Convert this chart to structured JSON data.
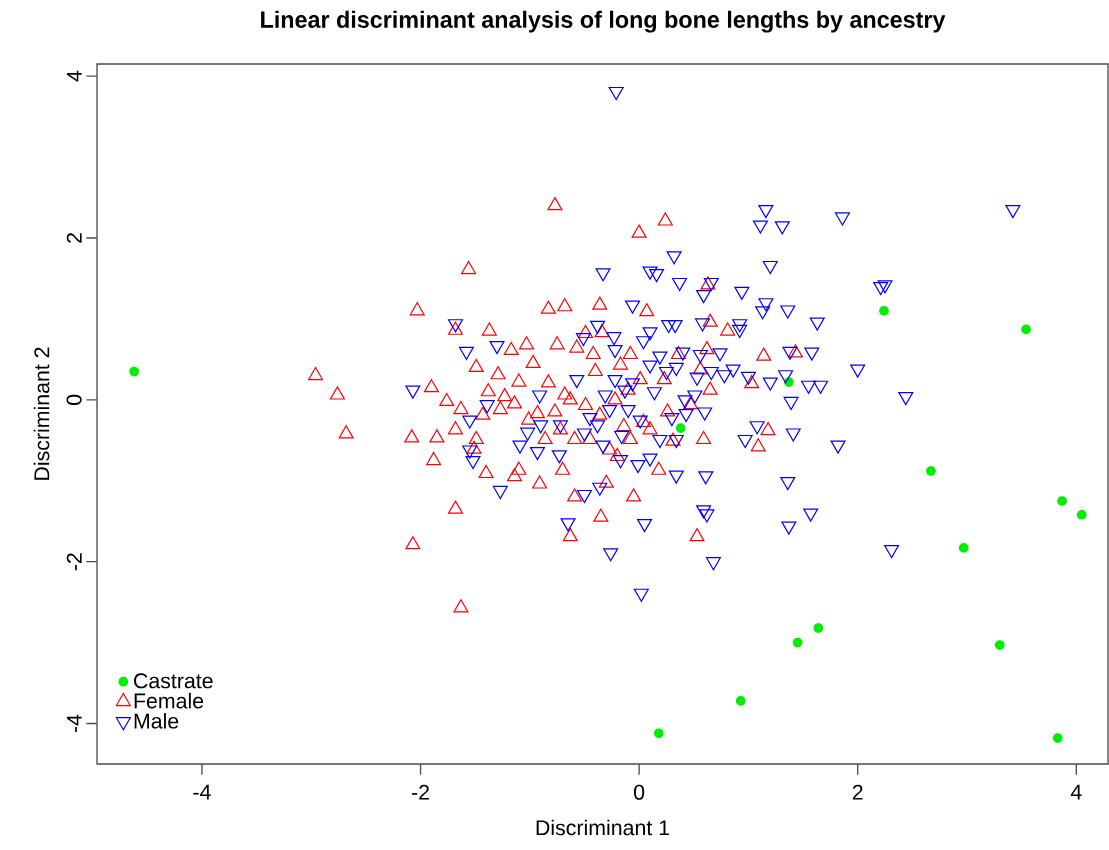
{
  "chart_data": {
    "type": "scatter",
    "title": "Linear discriminant analysis of long bone lengths by ancestry",
    "xlabel": "Discriminant 1",
    "ylabel": "Discriminant 2",
    "xlim": [
      -4.96,
      4.29
    ],
    "ylim": [
      -4.5,
      4.15
    ],
    "xticks": [
      -4,
      -2,
      0,
      2,
      4
    ],
    "yticks": [
      -4,
      -2,
      0,
      2,
      4
    ],
    "grid": false,
    "legend": "bottom left",
    "series": [
      {
        "name": "Castrate",
        "color": "#00ee00",
        "marker": "circle",
        "x": [
          -4.62,
          2.24,
          3.54,
          1.37,
          0.38,
          2.67,
          3.87,
          4.05,
          2.97,
          1.64,
          1.45,
          3.3,
          0.93,
          0.18,
          3.83
        ],
        "values": [
          0.35,
          1.1,
          0.87,
          0.22,
          -0.35,
          -0.88,
          -1.25,
          -1.42,
          -1.83,
          -2.82,
          -3.0,
          -3.03,
          -3.72,
          -4.12,
          -4.18
        ]
      },
      {
        "name": "Female",
        "color": "#ff0000",
        "marker": "triangle",
        "x": [
          -0.77,
          0.24,
          0.0,
          -1.56,
          -2.03,
          -0.36,
          -0.68,
          -0.83,
          0.65,
          -1.68,
          -1.37,
          -0.34,
          -0.49,
          0.63,
          0.07,
          -0.42,
          -0.75,
          -0.57,
          -1.03,
          -1.17,
          -0.97,
          -1.49,
          -1.1,
          -1.9,
          -2.96,
          -2.76,
          -2.68,
          -2.08,
          -1.85,
          -1.88,
          -1.68,
          -1.68,
          -2.07,
          -1.63,
          -1.51,
          -1.4,
          -1.38,
          -1.29,
          -1.63,
          -1.76,
          -1.49,
          -1.43,
          -1.23,
          -1.14,
          -0.93,
          -0.91,
          -1.1,
          -1.14,
          -0.7,
          -0.59,
          -0.63,
          -0.35,
          -0.05,
          -0.3,
          -0.2,
          -0.08,
          0.1,
          0.31,
          0.59,
          0.53,
          1.18,
          1.09,
          1.03,
          1.14,
          1.43,
          0.81,
          0.62,
          0.23,
          0.36,
          0.56,
          0.65,
          0.47,
          0.26,
          0.01,
          -0.1,
          -0.22,
          -0.36,
          -0.49,
          -0.63,
          -0.77,
          -0.72,
          -0.59,
          -0.4,
          -0.17,
          -0.08,
          -0.27,
          -0.45,
          -0.83,
          -0.68,
          -0.86,
          -0.14,
          0.04,
          0.18,
          -1.01,
          -1.27
        ],
        "values": [
          2.4,
          2.21,
          2.06,
          1.61,
          1.1,
          1.17,
          1.15,
          1.12,
          0.96,
          0.86,
          0.85,
          0.83,
          0.82,
          1.42,
          1.09,
          0.56,
          0.68,
          0.64,
          0.68,
          0.61,
          0.45,
          0.4,
          0.22,
          0.15,
          0.3,
          0.06,
          -0.42,
          -0.47,
          -0.47,
          -0.75,
          -0.37,
          -1.35,
          -1.79,
          -2.57,
          -0.61,
          -0.91,
          0.1,
          0.31,
          -0.12,
          -0.02,
          -0.49,
          -0.19,
          0.04,
          -0.05,
          -0.17,
          -1.04,
          -0.87,
          -0.95,
          -0.87,
          -1.2,
          -1.69,
          -1.45,
          -1.2,
          -1.03,
          -0.7,
          -0.49,
          -0.37,
          -0.51,
          -0.49,
          -1.69,
          -0.38,
          -0.58,
          0.2,
          0.54,
          0.58,
          0.85,
          0.62,
          0.25,
          0.56,
          0.37,
          0.12,
          -0.06,
          -0.15,
          0.25,
          0.12,
          0.0,
          -0.19,
          -0.07,
          0.0,
          -0.15,
          -0.37,
          -0.49,
          0.35,
          0.43,
          0.56,
          -0.62,
          -0.49,
          0.21,
          0.06,
          -0.49,
          -0.33,
          -0.28,
          -0.87,
          -0.25,
          -0.12
        ]
      },
      {
        "name": "Male",
        "color": "#0000ff",
        "marker": "triangle-down",
        "x": [
          -0.21,
          3.42,
          1.16,
          1.11,
          1.31,
          1.86,
          0.32,
          1.2,
          2.25,
          2.21,
          -0.33,
          -0.06,
          0.1,
          0.16,
          0.37,
          0.66,
          0.59,
          0.94,
          1.16,
          1.13,
          1.36,
          1.63,
          0.92,
          0.92,
          0.33,
          0.27,
          0.58,
          0.1,
          0.04,
          -0.23,
          -0.38,
          -0.51,
          -0.22,
          -1.58,
          -1.68,
          -1.3,
          -2.07,
          -1.55,
          -1.52,
          -1.27,
          -0.93,
          -0.73,
          -0.65,
          -0.5,
          -0.36,
          -0.26,
          0.02,
          0.05,
          0.34,
          0.61,
          0.59,
          0.62,
          0.68,
          1.37,
          1.36,
          1.57,
          2.31,
          1.82,
          1.41,
          2.44,
          2.0,
          1.39,
          1.66,
          1.55,
          1.58,
          1.38,
          1.34,
          1.2,
          1.0,
          1.08,
          0.97,
          0.78,
          0.74,
          0.56,
          0.4,
          0.34,
          0.25,
          0.53,
          0.86,
          0.66,
          0.51,
          0.6,
          0.42,
          0.3,
          0.34,
          0.43,
          0.14,
          0.19,
          0.1,
          -0.13,
          -0.06,
          -0.22,
          -0.31,
          -0.27,
          -0.1,
          0.01,
          0.19,
          0.1,
          -0.01,
          -0.17,
          -0.16,
          -0.45,
          -0.5,
          -0.72,
          -0.57,
          -0.91,
          -1.02,
          -0.9,
          -1.39,
          -1.55,
          -1.09,
          -0.38,
          -0.33
        ],
        "values": [
          3.81,
          2.35,
          2.35,
          2.16,
          2.15,
          2.26,
          1.78,
          1.66,
          1.42,
          1.4,
          1.57,
          1.17,
          1.59,
          1.56,
          1.45,
          1.45,
          1.3,
          1.34,
          1.2,
          1.1,
          1.11,
          0.96,
          0.94,
          0.87,
          0.93,
          0.93,
          0.95,
          0.84,
          0.73,
          0.78,
          0.92,
          0.77,
          0.62,
          0.6,
          0.94,
          0.67,
          0.12,
          -0.62,
          -0.75,
          -1.12,
          -0.64,
          -0.68,
          -1.52,
          -1.17,
          -1.08,
          -1.89,
          -2.39,
          -1.53,
          -0.93,
          -0.94,
          -1.36,
          -1.41,
          -2.0,
          -1.56,
          -1.01,
          -1.4,
          -1.85,
          -0.56,
          -0.41,
          0.04,
          0.38,
          -0.02,
          0.18,
          0.18,
          0.59,
          0.6,
          0.31,
          0.22,
          0.29,
          -0.32,
          -0.49,
          0.31,
          0.58,
          0.56,
          0.59,
          0.4,
          0.35,
          0.28,
          0.38,
          0.35,
          0.06,
          -0.15,
          0.0,
          -0.22,
          -0.49,
          -0.17,
          0.1,
          0.54,
          0.43,
          0.12,
          0.21,
          0.25,
          0.06,
          -0.12,
          -0.12,
          -0.25,
          -0.49,
          -0.72,
          -0.8,
          -0.74,
          -0.44,
          -0.22,
          -0.41,
          -0.31,
          0.25,
          0.06,
          -0.4,
          -0.31,
          -0.06,
          -0.25,
          -0.56,
          -0.31,
          -0.56
        ]
      }
    ]
  }
}
